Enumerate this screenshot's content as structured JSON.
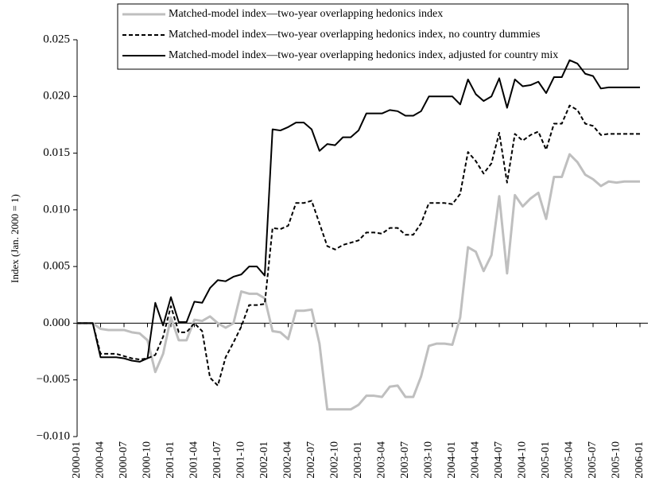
{
  "chart_data": {
    "type": "line",
    "y_label": "Index (Jan. 2000 = 1)",
    "legend": "top",
    "categories": [
      "2000-01",
      null,
      null,
      "2000-04",
      null,
      null,
      "2000-07",
      null,
      null,
      "2000-10",
      null,
      null,
      "2001-01",
      null,
      null,
      "2001-04",
      null,
      null,
      "2001-07",
      null,
      null,
      "2001-10",
      null,
      null,
      "2002-01",
      null,
      null,
      "2002-04",
      null,
      null,
      "2002-07",
      null,
      null,
      "2002-10",
      null,
      null,
      "2003-01",
      null,
      null,
      "2003-04",
      null,
      null,
      "2003-07",
      null,
      null,
      "2003-10",
      null,
      null,
      "2004-01",
      null,
      null,
      "2004-04",
      null,
      null,
      "2004-07",
      null,
      null,
      "2004-10",
      null,
      null,
      "2005-01",
      null,
      null,
      "2005-04",
      null,
      null,
      "2005-07",
      null,
      null,
      "2005-10",
      null,
      null,
      "2006-01"
    ],
    "ylim": [
      -0.01,
      0.025
    ],
    "yticks": [
      {
        "value": -0.01,
        "label": "−0.010"
      },
      {
        "value": -0.005,
        "label": "−0.005"
      },
      {
        "value": 0,
        "label": "0.000"
      },
      {
        "value": 0.005,
        "label": "0.005"
      },
      {
        "value": 0.01,
        "label": "0.010"
      },
      {
        "value": 0.015,
        "label": "0.015"
      },
      {
        "value": 0.02,
        "label": "0.020"
      },
      {
        "value": 0.025,
        "label": "0.025"
      }
    ],
    "series": [
      {
        "name": "Matched-model index—two-year overlapping hedonics index",
        "color": "#bfbfbf",
        "style": "solid",
        "width": 3,
        "values": [
          0,
          0,
          0,
          -0.0005,
          -0.0006,
          -0.0006,
          -0.0006,
          -0.0008,
          -0.0009,
          -0.0015,
          -0.0043,
          -0.0027,
          0.0005,
          -0.0015,
          -0.0015,
          0.0003,
          0.0002,
          0.0006,
          0,
          -0.0004,
          0,
          0.0028,
          0.0026,
          0.0026,
          0.0022,
          -0.0007,
          -0.0008,
          -0.0014,
          0.0011,
          0.0011,
          0.0012,
          -0.0018,
          -0.0076,
          -0.0076,
          -0.0076,
          -0.0076,
          -0.0072,
          -0.0064,
          -0.0064,
          -0.0065,
          -0.0056,
          -0.0055,
          -0.0065,
          -0.0065,
          -0.0047,
          -0.002,
          -0.0018,
          -0.0018,
          -0.0019,
          0.0005,
          0.0067,
          0.0063,
          0.0046,
          0.006,
          0.0112,
          0.0044,
          0.0113,
          0.0103,
          0.011,
          0.0115,
          0.0092,
          0.0129,
          0.0129,
          0.0149,
          0.0142,
          0.0131,
          0.0127,
          0.0121,
          0.0125,
          0.0124,
          0.0125,
          0.0125,
          0.0125
        ]
      },
      {
        "name": "Matched-model index—two-year overlapping hedonics index, no country dummies",
        "color": "#000000",
        "style": "dashed",
        "width": 2,
        "values": [
          0,
          0,
          0,
          -0.0027,
          -0.0027,
          -0.0027,
          -0.0029,
          -0.0031,
          -0.0032,
          -0.0031,
          -0.0028,
          -0.0012,
          0.0015,
          -0.0008,
          -0.0008,
          0,
          -0.0007,
          -0.0048,
          -0.0055,
          -0.003,
          -0.0017,
          -0.0003,
          0.0016,
          0.0016,
          0.0017,
          0.0084,
          0.0083,
          0.0086,
          0.0106,
          0.0106,
          0.0108,
          0.0088,
          0.0068,
          0.0065,
          0.0069,
          0.0071,
          0.0073,
          0.008,
          0.008,
          0.0079,
          0.0084,
          0.0084,
          0.0078,
          0.0078,
          0.0088,
          0.0106,
          0.0106,
          0.0106,
          0.0105,
          0.0114,
          0.0151,
          0.0143,
          0.0132,
          0.0141,
          0.0168,
          0.0124,
          0.0167,
          0.0161,
          0.0166,
          0.0169,
          0.0153,
          0.0176,
          0.0176,
          0.0192,
          0.0188,
          0.0176,
          0.0174,
          0.0166,
          0.0167,
          0.0167,
          0.0167,
          0.0167,
          0.0167
        ]
      },
      {
        "name": "Matched-model index—two-year overlapping hedonics index, adjusted for country mix",
        "color": "#000000",
        "style": "solid",
        "width": 2,
        "values": [
          0,
          0,
          0,
          -0.003,
          -0.003,
          -0.003,
          -0.0031,
          -0.0033,
          -0.0034,
          -0.0031,
          0.0018,
          -0.0002,
          0.0023,
          0.0001,
          0.0001,
          0.0019,
          0.0018,
          0.0031,
          0.0038,
          0.0037,
          0.0041,
          0.0043,
          0.005,
          0.005,
          0.0042,
          0.0171,
          0.017,
          0.0173,
          0.0177,
          0.0177,
          0.0171,
          0.0152,
          0.0158,
          0.0157,
          0.0164,
          0.0164,
          0.017,
          0.0185,
          0.0185,
          0.0185,
          0.0188,
          0.0187,
          0.0183,
          0.0183,
          0.0187,
          0.02,
          0.02,
          0.02,
          0.02,
          0.0193,
          0.0215,
          0.0202,
          0.0196,
          0.02,
          0.0216,
          0.019,
          0.0215,
          0.0209,
          0.021,
          0.0213,
          0.0203,
          0.0217,
          0.0217,
          0.0232,
          0.0229,
          0.022,
          0.0218,
          0.0207,
          0.0208,
          0.0208,
          0.0208,
          0.0208,
          0.0208
        ]
      }
    ]
  }
}
